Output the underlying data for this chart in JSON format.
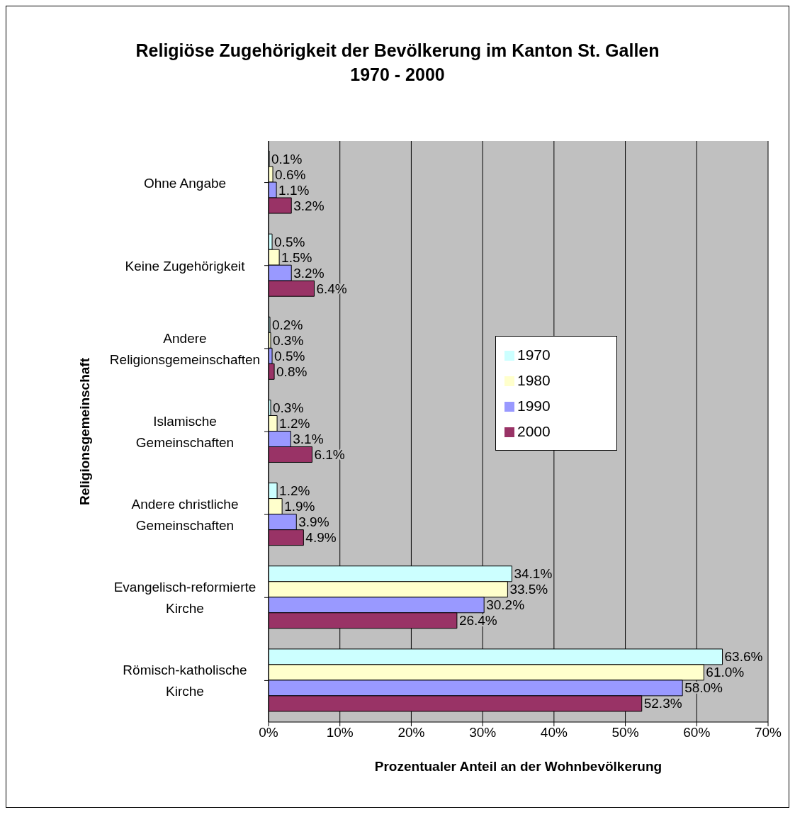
{
  "chart_data": {
    "type": "bar",
    "orientation": "horizontal",
    "title": "Religiöse Zugehörigkeit der Bevölkerung im Kanton St. Gallen\n1970 - 2000",
    "xlabel": "Prozentualer Anteil an der Wohnbevölkerung",
    "ylabel": "Religionsgemeinschaft",
    "categories": [
      "Ohne Angabe",
      "Keine Zugehörigkeit",
      "Andere Religionsgemeinschaften",
      "Islamische Gemeinschaften",
      "Andere christliche Gemeinschaften",
      "Evangelisch-reformierte Kirche",
      "Römisch-katholische Kirche"
    ],
    "series": [
      {
        "name": "1970",
        "color": "#ccffff",
        "values": [
          0.1,
          0.5,
          0.2,
          0.3,
          1.2,
          34.1,
          63.6
        ],
        "value_labels": [
          "0.1%",
          "0.5%",
          "0.2%",
          "0.3%",
          "1.2%",
          "34.1%",
          "63.6%"
        ]
      },
      {
        "name": "1980",
        "color": "#ffffcc",
        "values": [
          0.6,
          1.5,
          0.3,
          1.2,
          1.9,
          33.5,
          61.0
        ],
        "value_labels": [
          "0.6%",
          "1.5%",
          "0.3%",
          "1.2%",
          "1.9%",
          "33.5%",
          "61.0%"
        ]
      },
      {
        "name": "1990",
        "color": "#9999ff",
        "values": [
          1.1,
          3.2,
          0.5,
          3.1,
          3.9,
          30.2,
          58.0
        ],
        "value_labels": [
          "1.1%",
          "3.2%",
          "0.5%",
          "3.1%",
          "3.9%",
          "30.2%",
          "58.0%"
        ]
      },
      {
        "name": "2000",
        "color": "#993366",
        "values": [
          3.2,
          6.4,
          0.8,
          6.1,
          4.9,
          26.4,
          52.3
        ],
        "value_labels": [
          "3.2%",
          "6.4%",
          "0.8%",
          "6.1%",
          "4.9%",
          "26.4%",
          "52.3%"
        ]
      }
    ],
    "xlim": [
      0,
      70
    ],
    "xticks": [
      {
        "value": 0,
        "label": "0%"
      },
      {
        "value": 10,
        "label": "10%"
      },
      {
        "value": 20,
        "label": "20%"
      },
      {
        "value": 30,
        "label": "30%"
      },
      {
        "value": 40,
        "label": "40%"
      },
      {
        "value": 50,
        "label": "50%"
      },
      {
        "value": 60,
        "label": "60%"
      },
      {
        "value": 70,
        "label": "70%"
      }
    ],
    "grid": "x",
    "legend": "right"
  }
}
